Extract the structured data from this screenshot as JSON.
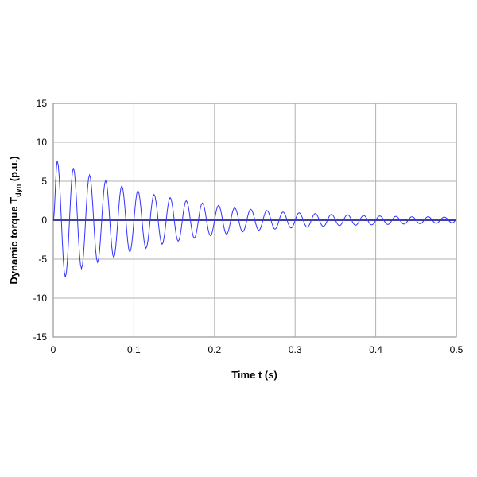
{
  "chart_data": {
    "type": "line",
    "title": "",
    "xlabel": "Time t (s)",
    "ylabel": {
      "main": "Dynamic torque T",
      "subscript": "dyn",
      "unit": " (p.u.)"
    },
    "xlim": [
      0,
      0.5
    ],
    "ylim": [
      -15,
      15
    ],
    "x_ticks": [
      "0",
      "0.1",
      "0.2",
      "0.3",
      "0.4",
      "0.5"
    ],
    "y_ticks": [
      "15",
      "10",
      "5",
      "0",
      "-5",
      "-10",
      "-15"
    ],
    "grid": true,
    "legend": "none",
    "series": [
      {
        "color": "#3333ff",
        "points": [
          [
            0.0,
            0.0
          ],
          [
            0.005,
            7.6
          ],
          [
            0.015,
            -7.3
          ],
          [
            0.025,
            6.7
          ],
          [
            0.035,
            -6.2
          ],
          [
            0.045,
            5.8
          ],
          [
            0.055,
            -5.4
          ],
          [
            0.065,
            5.1
          ],
          [
            0.075,
            -4.8
          ],
          [
            0.085,
            4.4
          ],
          [
            0.095,
            -4.1
          ],
          [
            0.105,
            3.8
          ],
          [
            0.115,
            -3.6
          ],
          [
            0.125,
            3.3
          ],
          [
            0.135,
            -3.1
          ],
          [
            0.145,
            2.9
          ],
          [
            0.155,
            -2.7
          ],
          [
            0.165,
            2.5
          ],
          [
            0.175,
            -2.3
          ],
          [
            0.185,
            2.2
          ],
          [
            0.195,
            -2.0
          ],
          [
            0.205,
            1.9
          ],
          [
            0.215,
            -1.8
          ],
          [
            0.225,
            1.6
          ],
          [
            0.235,
            -1.5
          ],
          [
            0.245,
            1.4
          ],
          [
            0.255,
            -1.3
          ],
          [
            0.265,
            1.25
          ],
          [
            0.275,
            -1.15
          ],
          [
            0.285,
            1.05
          ],
          [
            0.295,
            -1.0
          ],
          [
            0.305,
            0.95
          ],
          [
            0.315,
            -0.9
          ],
          [
            0.325,
            0.85
          ],
          [
            0.335,
            -0.8
          ],
          [
            0.345,
            0.75
          ],
          [
            0.355,
            -0.7
          ],
          [
            0.365,
            0.7
          ],
          [
            0.375,
            -0.65
          ],
          [
            0.385,
            0.6
          ],
          [
            0.395,
            -0.6
          ],
          [
            0.405,
            0.55
          ],
          [
            0.415,
            -0.55
          ],
          [
            0.425,
            0.5
          ],
          [
            0.435,
            -0.5
          ],
          [
            0.445,
            0.45
          ],
          [
            0.455,
            -0.45
          ],
          [
            0.465,
            0.45
          ],
          [
            0.475,
            -0.4
          ],
          [
            0.485,
            0.4
          ],
          [
            0.495,
            -0.35
          ],
          [
            0.5,
            0.0
          ]
        ]
      }
    ]
  }
}
